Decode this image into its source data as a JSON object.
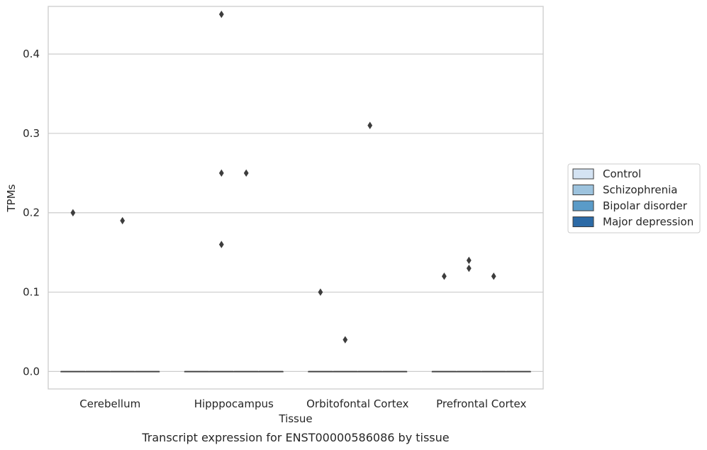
{
  "chart_data": {
    "type": "box",
    "x_label": "Tissue",
    "y_label": "TPMs",
    "caption": "Transcript expression for ENST00000586086 by tissue",
    "categories": [
      "Cerebellum",
      "Hipppocampus",
      "Orbitofontal Cortex",
      "Prefrontal Cortex"
    ],
    "y_range": [
      -0.022,
      0.46
    ],
    "y_ticks": [
      0.0,
      0.1,
      0.2,
      0.3,
      0.4
    ],
    "y_tick_labels": [
      "0.0",
      "0.1",
      "0.2",
      "0.3",
      "0.4"
    ],
    "grid": "horizontal",
    "legend_position": "right",
    "series": [
      {
        "name": "Control",
        "color": "#d4e3f3",
        "boxes": [
          {
            "category": "Cerebellum",
            "median": 0,
            "q1": 0,
            "q3": 0
          },
          {
            "category": "Hipppocampus",
            "median": 0,
            "q1": 0,
            "q3": 0
          },
          {
            "category": "Orbitofontal Cortex",
            "median": 0,
            "q1": 0,
            "q3": 0
          },
          {
            "category": "Prefrontal Cortex",
            "median": 0,
            "q1": 0,
            "q3": 0
          }
        ],
        "outliers": [
          {
            "category": "Cerebellum",
            "values": [
              0.2
            ]
          },
          {
            "category": "Hipppocampus",
            "values": []
          },
          {
            "category": "Orbitofontal Cortex",
            "values": [
              0.1
            ]
          },
          {
            "category": "Prefrontal Cortex",
            "values": [
              0.12
            ]
          }
        ]
      },
      {
        "name": "Schizophrenia",
        "color": "#9dc3de",
        "boxes": [
          {
            "category": "Cerebellum",
            "median": 0,
            "q1": 0,
            "q3": 0
          },
          {
            "category": "Hipppocampus",
            "median": 0,
            "q1": 0,
            "q3": 0
          },
          {
            "category": "Orbitofontal Cortex",
            "median": 0,
            "q1": 0,
            "q3": 0
          },
          {
            "category": "Prefrontal Cortex",
            "median": 0,
            "q1": 0,
            "q3": 0
          }
        ],
        "outliers": [
          {
            "category": "Cerebellum",
            "values": []
          },
          {
            "category": "Hipppocampus",
            "values": [
              0.45,
              0.25,
              0.16
            ]
          },
          {
            "category": "Orbitofontal Cortex",
            "values": [
              0.04
            ]
          },
          {
            "category": "Prefrontal Cortex",
            "values": [
              0.14,
              0.13
            ]
          }
        ]
      },
      {
        "name": "Bipolar disorder",
        "color": "#5a9bc8",
        "boxes": [
          {
            "category": "Cerebellum",
            "median": 0,
            "q1": 0,
            "q3": 0
          },
          {
            "category": "Hipppocampus",
            "median": 0,
            "q1": 0,
            "q3": 0
          },
          {
            "category": "Orbitofontal Cortex",
            "median": 0,
            "q1": 0,
            "q3": 0
          },
          {
            "category": "Prefrontal Cortex",
            "median": 0,
            "q1": 0,
            "q3": 0
          }
        ],
        "outliers": [
          {
            "category": "Cerebellum",
            "values": [
              0.19
            ]
          },
          {
            "category": "Hipppocampus",
            "values": [
              0.25
            ]
          },
          {
            "category": "Orbitofontal Cortex",
            "values": [
              0.31
            ]
          },
          {
            "category": "Prefrontal Cortex",
            "values": [
              0.12
            ]
          }
        ]
      },
      {
        "name": "Major depression",
        "color": "#2c6aa6",
        "boxes": [
          {
            "category": "Cerebellum",
            "median": 0,
            "q1": 0,
            "q3": 0
          },
          {
            "category": "Hipppocampus",
            "median": 0,
            "q1": 0,
            "q3": 0
          },
          {
            "category": "Orbitofontal Cortex",
            "median": 0,
            "q1": 0,
            "q3": 0
          },
          {
            "category": "Prefrontal Cortex",
            "median": 0,
            "q1": 0,
            "q3": 0
          }
        ],
        "outliers": [
          {
            "category": "Cerebellum",
            "values": []
          },
          {
            "category": "Hipppocampus",
            "values": []
          },
          {
            "category": "Orbitofontal Cortex",
            "values": []
          },
          {
            "category": "Prefrontal Cortex",
            "values": []
          }
        ]
      }
    ]
  }
}
